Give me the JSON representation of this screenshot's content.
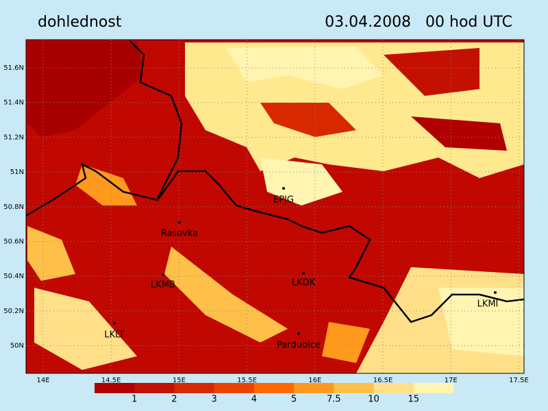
{
  "header": {
    "title": "dohlednost",
    "date": "03.04.2008   00 hod UTC"
  },
  "map": {
    "lat_labels": [
      "51.6N",
      "51.4N",
      "51.2N",
      "51N",
      "50.8N",
      "50.6N",
      "50.4N",
      "50.2N",
      "50N"
    ],
    "lon_labels": [
      "14E",
      "14.5E",
      "15E",
      "15.5E",
      "16E",
      "16.5E",
      "17E",
      "17.5E"
    ],
    "stations": [
      {
        "label": "EPJG"
      },
      {
        "label": "Rasovka"
      },
      {
        "label": "LKMB"
      },
      {
        "label": "LKDK"
      },
      {
        "label": "LKLT"
      },
      {
        "label": "Pardubice"
      },
      {
        "label": "LKMI"
      }
    ]
  },
  "legend": {
    "colors": [
      "#b00000",
      "#c41000",
      "#d82800",
      "#ec4400",
      "#ff6a00",
      "#ff9a1e",
      "#ffc04a",
      "#ffe088",
      "#fff4b0"
    ],
    "labels": [
      "1",
      "2",
      "3",
      "4",
      "5",
      "7.5",
      "10",
      "15"
    ]
  }
}
